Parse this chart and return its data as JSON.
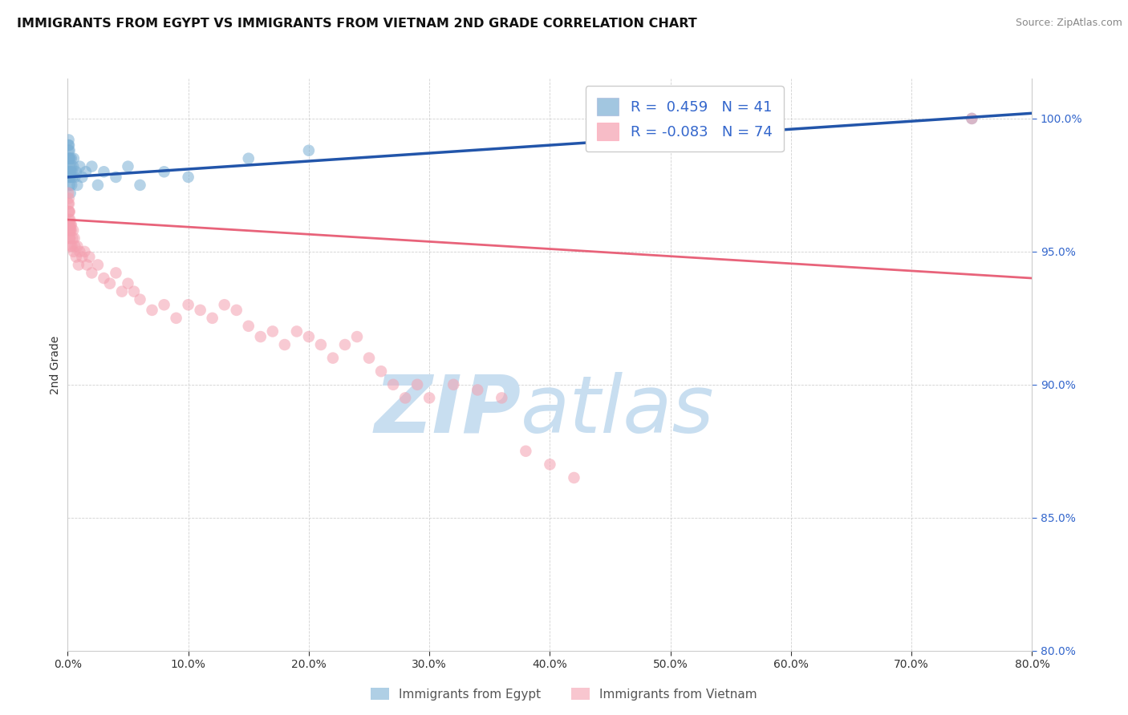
{
  "title": "IMMIGRANTS FROM EGYPT VS IMMIGRANTS FROM VIETNAM 2ND GRADE CORRELATION CHART",
  "source": "Source: ZipAtlas.com",
  "ylabel": "2nd Grade",
  "x_min": 0.0,
  "x_max": 80.0,
  "y_min": 80.0,
  "y_max": 101.5,
  "x_ticks": [
    0.0,
    10.0,
    20.0,
    30.0,
    40.0,
    50.0,
    60.0,
    70.0,
    80.0
  ],
  "y_ticks": [
    80.0,
    85.0,
    90.0,
    95.0,
    100.0
  ],
  "egypt_color": "#7BAFD4",
  "vietnam_color": "#F4A0B0",
  "egypt_R": 0.459,
  "egypt_N": 41,
  "vietnam_R": -0.083,
  "vietnam_N": 74,
  "egypt_line_color": "#2255AA",
  "vietnam_line_color": "#E8637A",
  "watermark_zip": "ZIP",
  "watermark_atlas": "atlas",
  "watermark_color": "#C8DEF0",
  "legend_R_color": "#3366CC",
  "egypt_scatter_x": [
    0.05,
    0.07,
    0.08,
    0.09,
    0.1,
    0.11,
    0.12,
    0.13,
    0.14,
    0.15,
    0.16,
    0.17,
    0.18,
    0.2,
    0.22,
    0.24,
    0.25,
    0.28,
    0.3,
    0.32,
    0.35,
    0.4,
    0.45,
    0.5,
    0.6,
    0.7,
    0.8,
    1.0,
    1.2,
    1.5,
    2.0,
    2.5,
    3.0,
    4.0,
    5.0,
    6.0,
    8.0,
    10.0,
    15.0,
    20.0,
    75.0
  ],
  "egypt_scatter_y": [
    99.0,
    98.8,
    99.2,
    98.5,
    98.0,
    99.0,
    97.8,
    98.5,
    98.2,
    98.8,
    97.5,
    98.0,
    97.8,
    98.5,
    97.2,
    98.0,
    97.8,
    98.2,
    98.5,
    97.5,
    98.0,
    97.8,
    98.2,
    98.5,
    97.8,
    98.0,
    97.5,
    98.2,
    97.8,
    98.0,
    98.2,
    97.5,
    98.0,
    97.8,
    98.2,
    97.5,
    98.0,
    97.8,
    98.5,
    98.8,
    100.0
  ],
  "vietnam_scatter_x": [
    0.04,
    0.06,
    0.08,
    0.09,
    0.1,
    0.11,
    0.12,
    0.13,
    0.14,
    0.15,
    0.16,
    0.17,
    0.18,
    0.19,
    0.2,
    0.22,
    0.24,
    0.26,
    0.28,
    0.3,
    0.35,
    0.4,
    0.45,
    0.5,
    0.55,
    0.6,
    0.7,
    0.8,
    0.9,
    1.0,
    1.2,
    1.4,
    1.6,
    1.8,
    2.0,
    2.5,
    3.0,
    3.5,
    4.0,
    4.5,
    5.0,
    5.5,
    6.0,
    7.0,
    8.0,
    9.0,
    10.0,
    11.0,
    12.0,
    13.0,
    14.0,
    15.0,
    16.0,
    17.0,
    18.0,
    19.0,
    20.0,
    21.0,
    22.0,
    23.0,
    24.0,
    25.0,
    26.0,
    27.0,
    28.0,
    29.0,
    30.0,
    32.0,
    34.0,
    36.0,
    38.0,
    40.0,
    42.0,
    75.0
  ],
  "vietnam_scatter_y": [
    96.8,
    97.2,
    96.5,
    97.0,
    96.2,
    96.8,
    95.8,
    96.5,
    96.0,
    96.5,
    95.5,
    96.0,
    95.8,
    96.2,
    95.5,
    95.8,
    96.0,
    95.2,
    95.8,
    96.0,
    95.2,
    95.5,
    95.8,
    95.0,
    95.5,
    95.2,
    94.8,
    95.2,
    94.5,
    95.0,
    94.8,
    95.0,
    94.5,
    94.8,
    94.2,
    94.5,
    94.0,
    93.8,
    94.2,
    93.5,
    93.8,
    93.5,
    93.2,
    92.8,
    93.0,
    92.5,
    93.0,
    92.8,
    92.5,
    93.0,
    92.8,
    92.2,
    91.8,
    92.0,
    91.5,
    92.0,
    91.8,
    91.5,
    91.0,
    91.5,
    91.8,
    91.0,
    90.5,
    90.0,
    89.5,
    90.0,
    89.5,
    90.0,
    89.8,
    89.5,
    87.5,
    87.0,
    86.5,
    100.0
  ],
  "egypt_trendline_x": [
    0.0,
    80.0
  ],
  "egypt_trendline_y": [
    97.8,
    100.2
  ],
  "vietnam_trendline_x": [
    0.0,
    80.0
  ],
  "vietnam_trendline_y": [
    96.2,
    94.0
  ]
}
